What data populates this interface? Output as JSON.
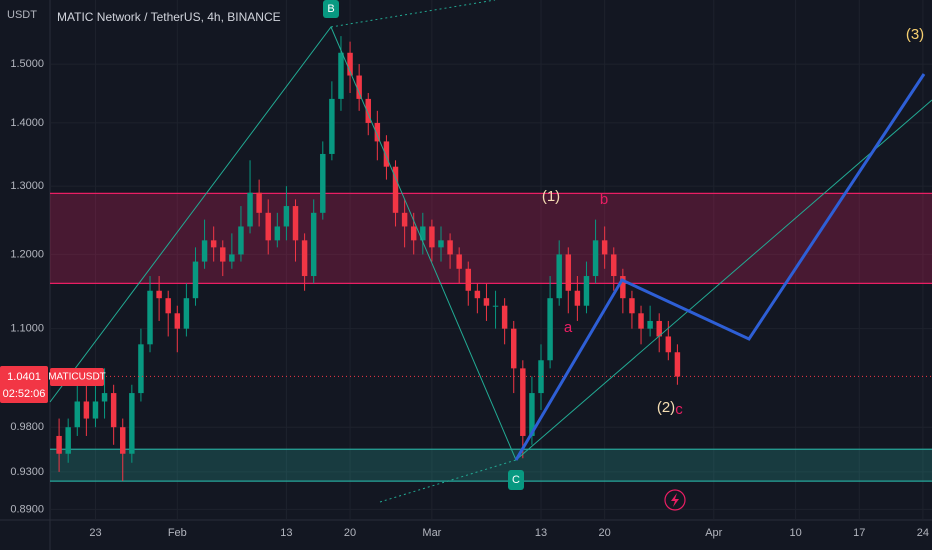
{
  "chart_data": {
    "type": "candlestick",
    "title": "MATIC Network / TetherUS, 4h, BINANCE",
    "y_axis_label": "USDT",
    "symbol": "MATICUSDT",
    "countdown": "02:52:06",
    "last_price": 1.0401,
    "log_scale": true,
    "grid": true,
    "up_color": "#089981",
    "down_color": "#f23645",
    "x": [
      "01-19",
      "01-20",
      "01-21",
      "01-22",
      "01-23",
      "01-24",
      "01-25",
      "01-26",
      "01-27",
      "01-28",
      "01-29",
      "01-30",
      "01-31",
      "02-01",
      "02-02",
      "02-03",
      "02-04",
      "02-05",
      "02-06",
      "02-07",
      "02-08",
      "02-09",
      "02-10",
      "02-11",
      "02-12",
      "02-13",
      "02-14",
      "02-15",
      "02-16",
      "02-17",
      "02-18",
      "02-19",
      "02-20",
      "02-21",
      "02-22",
      "02-23",
      "02-24",
      "02-25",
      "02-26",
      "02-27",
      "02-28",
      "03-01",
      "03-02",
      "03-03",
      "03-04",
      "03-05",
      "03-06",
      "03-07",
      "03-08",
      "03-09",
      "03-10",
      "03-11",
      "03-12",
      "03-13",
      "03-14",
      "03-15",
      "03-16",
      "03-17",
      "03-18",
      "03-19",
      "03-20",
      "03-21",
      "03-22",
      "03-23",
      "03-24",
      "03-25",
      "03-26",
      "03-27",
      "03-28"
    ],
    "open": [
      0.97,
      0.95,
      0.98,
      1.01,
      0.99,
      1.01,
      1.02,
      0.98,
      0.95,
      1.02,
      1.08,
      1.15,
      1.14,
      1.12,
      1.1,
      1.14,
      1.19,
      1.22,
      1.21,
      1.19,
      1.2,
      1.24,
      1.29,
      1.26,
      1.22,
      1.24,
      1.27,
      1.22,
      1.17,
      1.26,
      1.35,
      1.44,
      1.52,
      1.48,
      1.44,
      1.4,
      1.37,
      1.33,
      1.26,
      1.24,
      1.22,
      1.24,
      1.21,
      1.22,
      1.2,
      1.18,
      1.15,
      1.14,
      1.13,
      1.13,
      1.1,
      1.05,
      0.97,
      1.02,
      1.06,
      1.14,
      1.2,
      1.15,
      1.13,
      1.17,
      1.22,
      1.2,
      1.17,
      1.14,
      1.12,
      1.1,
      1.11,
      1.09,
      1.07
    ],
    "high": [
      0.99,
      0.99,
      1.03,
      1.04,
      1.03,
      1.05,
      1.03,
      0.99,
      1.03,
      1.1,
      1.17,
      1.17,
      1.15,
      1.13,
      1.16,
      1.21,
      1.25,
      1.24,
      1.22,
      1.23,
      1.27,
      1.34,
      1.31,
      1.28,
      1.26,
      1.3,
      1.28,
      1.23,
      1.28,
      1.37,
      1.47,
      1.55,
      1.54,
      1.5,
      1.45,
      1.42,
      1.38,
      1.34,
      1.28,
      1.26,
      1.26,
      1.25,
      1.24,
      1.23,
      1.21,
      1.19,
      1.16,
      1.16,
      1.15,
      1.14,
      1.11,
      1.06,
      1.04,
      1.08,
      1.17,
      1.22,
      1.21,
      1.17,
      1.19,
      1.25,
      1.24,
      1.21,
      1.18,
      1.15,
      1.13,
      1.13,
      1.12,
      1.11,
      1.08
    ],
    "low": [
      0.93,
      0.94,
      0.97,
      0.97,
      0.98,
      0.99,
      0.96,
      0.92,
      0.94,
      1.01,
      1.07,
      1.11,
      1.09,
      1.07,
      1.09,
      1.13,
      1.18,
      1.19,
      1.17,
      1.18,
      1.19,
      1.23,
      1.24,
      1.2,
      1.21,
      1.22,
      1.19,
      1.15,
      1.16,
      1.25,
      1.34,
      1.42,
      1.45,
      1.42,
      1.38,
      1.34,
      1.31,
      1.24,
      1.21,
      1.2,
      1.2,
      1.19,
      1.19,
      1.18,
      1.16,
      1.13,
      1.12,
      1.11,
      1.1,
      1.08,
      1.02,
      0.945,
      0.96,
      1.0,
      1.05,
      1.13,
      1.12,
      1.11,
      1.12,
      1.16,
      1.18,
      1.15,
      1.12,
      1.1,
      1.08,
      1.09,
      1.07,
      1.06,
      1.03
    ],
    "close": [
      0.95,
      0.98,
      1.01,
      0.99,
      1.01,
      1.02,
      0.98,
      0.95,
      1.02,
      1.08,
      1.15,
      1.14,
      1.12,
      1.1,
      1.14,
      1.19,
      1.22,
      1.21,
      1.19,
      1.2,
      1.24,
      1.29,
      1.26,
      1.22,
      1.24,
      1.27,
      1.22,
      1.17,
      1.26,
      1.35,
      1.44,
      1.52,
      1.48,
      1.44,
      1.4,
      1.37,
      1.33,
      1.26,
      1.24,
      1.22,
      1.24,
      1.21,
      1.22,
      1.2,
      1.18,
      1.15,
      1.14,
      1.13,
      1.13,
      1.1,
      1.05,
      0.97,
      1.02,
      1.06,
      1.14,
      1.2,
      1.15,
      1.13,
      1.17,
      1.22,
      1.2,
      1.17,
      1.14,
      1.12,
      1.1,
      1.11,
      1.09,
      1.07,
      1.04
    ],
    "ylim": [
      0.879,
      1.617
    ],
    "yticks": [
      {
        "value": 1.5,
        "label": "1.5000"
      },
      {
        "value": 1.4,
        "label": "1.4000"
      },
      {
        "value": 1.3,
        "label": "1.3000"
      },
      {
        "value": 1.2,
        "label": "1.2000"
      },
      {
        "value": 1.1,
        "label": "1.1000"
      },
      {
        "value": 0.98,
        "label": "0.9800"
      },
      {
        "value": 0.93,
        "label": "0.9300"
      },
      {
        "value": 0.89,
        "label": "0.8900"
      }
    ],
    "xlim": [
      "01-18",
      "04-25"
    ],
    "xticks": [
      {
        "value": "01-23",
        "label": "23"
      },
      {
        "value": "02-01",
        "label": "Feb"
      },
      {
        "value": "02-13",
        "label": "13"
      },
      {
        "value": "02-20",
        "label": "20"
      },
      {
        "value": "03-01",
        "label": "Mar"
      },
      {
        "value": "03-13",
        "label": "13"
      },
      {
        "value": "03-20",
        "label": "20"
      },
      {
        "value": "04-01",
        "label": "Apr"
      },
      {
        "value": "04-10",
        "label": "10"
      },
      {
        "value": "04-17",
        "label": "17"
      },
      {
        "value": "04-24",
        "label": "24"
      }
    ],
    "zones": [
      {
        "range": [
          1.16,
          1.289
        ],
        "color": "#e91e63"
      },
      {
        "range": [
          0.92,
          0.955
        ],
        "color": "#26a69a"
      }
    ],
    "annotations": [
      "B",
      "C",
      "(1)",
      "b",
      "a",
      "(2)",
      "c",
      "(3)"
    ]
  }
}
